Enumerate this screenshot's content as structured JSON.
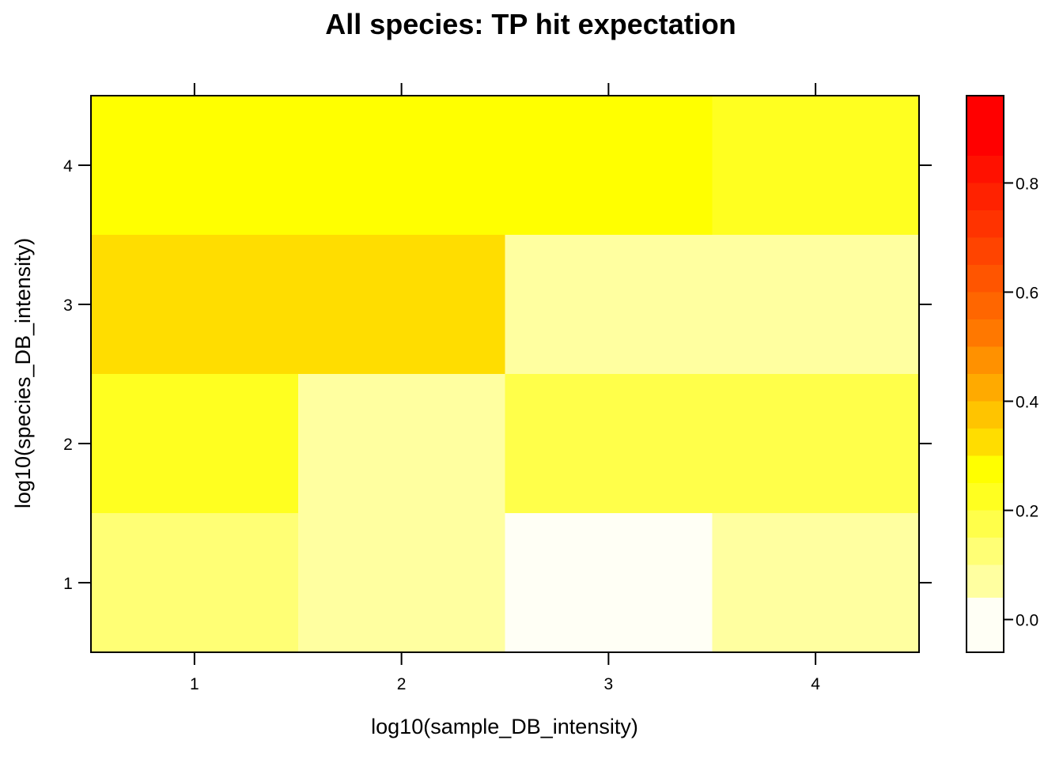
{
  "chart_data": {
    "type": "heatmap",
    "title": "All species: TP hit expectation",
    "xlabel": "log10(sample_DB_intensity)",
    "ylabel": "log10(species_DB_intensity)",
    "x": [
      1,
      2,
      3,
      4
    ],
    "y": [
      1,
      2,
      3,
      4
    ],
    "x_ticks": [
      "1",
      "2",
      "3",
      "4"
    ],
    "y_ticks": [
      "1",
      "2",
      "3",
      "4"
    ],
    "xlim": [
      0.5,
      4.5
    ],
    "ylim": [
      0.5,
      4.5
    ],
    "values": [
      [
        0.12,
        0.07,
        0.0,
        0.07
      ],
      [
        0.18,
        0.07,
        0.14,
        0.14
      ],
      [
        0.29,
        0.29,
        0.07,
        0.07
      ],
      [
        0.21,
        0.21,
        0.21,
        0.18
      ]
    ],
    "colorbar": {
      "range": [
        -0.06,
        0.96
      ],
      "breaks": [
        -0.06,
        0.04,
        0.1,
        0.15,
        0.2,
        0.25,
        0.3,
        0.35,
        0.4,
        0.45,
        0.5,
        0.55,
        0.6,
        0.65,
        0.7,
        0.75,
        0.8,
        0.85,
        0.9,
        0.96
      ],
      "colors": [
        "#FFFFF5",
        "#FFFFA0",
        "#FFFF75",
        "#FFFF4A",
        "#FFFF20",
        "#FFFF00",
        "#FFDD00",
        "#FFC400",
        "#FFAA00",
        "#FF9100",
        "#FF7800",
        "#FF6600",
        "#FF5500",
        "#FF4400",
        "#FF3300",
        "#FF2200",
        "#FF1100",
        "#FF0000",
        "#FF0000"
      ],
      "ticks": [
        0.0,
        0.2,
        0.4,
        0.6,
        0.8
      ],
      "tick_labels": [
        "0.0",
        "0.2",
        "0.4",
        "0.6",
        "0.8"
      ]
    },
    "cell_colors": [
      [
        "#FFFF75",
        "#FFFFA0",
        "#FFFFF5",
        "#FFFFA0"
      ],
      [
        "#FFFF20",
        "#FFFFA0",
        "#FFFF4A",
        "#FFFF4A"
      ],
      [
        "#FFDD00",
        "#FFDD00",
        "#FFFFA0",
        "#FFFFA0"
      ],
      [
        "#FFFF00",
        "#FFFF00",
        "#FFFF00",
        "#FFFF20"
      ]
    ],
    "legend": "right"
  }
}
